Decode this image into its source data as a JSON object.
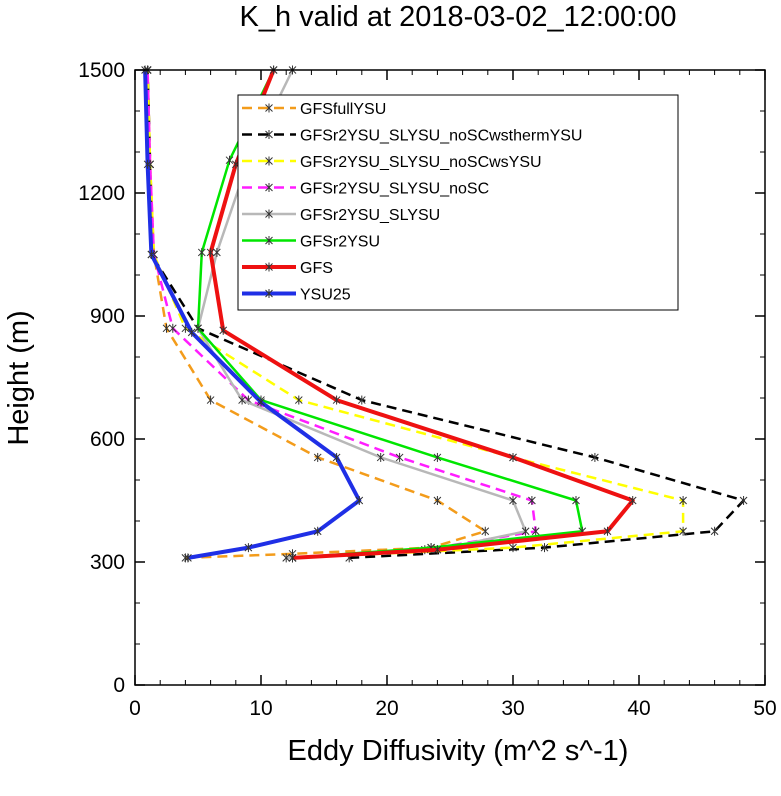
{
  "chart_data": {
    "type": "line",
    "title": "K_h valid at 2018-03-02_12:00:00",
    "xlabel": "Eddy Diffusivity (m^2 s^-1)",
    "ylabel": "Height (m)",
    "xlim": [
      0,
      50
    ],
    "ylim": [
      0,
      1500
    ],
    "xticks": [
      "0",
      "10",
      "20",
      "30",
      "40",
      "50"
    ],
    "yticks": [
      "0",
      "300",
      "600",
      "900",
      "1200",
      "1500"
    ],
    "legend_position": "top-right",
    "series": [
      {
        "name": "GFSfullYSU",
        "color": "#f39c1b",
        "dash": "dashed",
        "x": [
          4.0,
          12.5,
          23.5,
          27.8,
          24.0,
          14.5,
          6.0,
          2.5,
          1.5,
          1.2,
          1.0
        ],
        "y": [
          310,
          320,
          335,
          375,
          450,
          555,
          695,
          870,
          1050,
          1270,
          1500
        ]
      },
      {
        "name": "GFSr2YSU_SLYSU_noSCwsthermYSU",
        "color": "#000000",
        "dash": "dashed",
        "x": [
          17.0,
          32.5,
          46.0,
          48.3,
          36.5,
          18.0,
          5.0,
          1.3,
          1.2,
          1.0
        ],
        "y": [
          310,
          335,
          375,
          450,
          555,
          695,
          870,
          1050,
          1270,
          1500
        ]
      },
      {
        "name": "GFSr2YSU_SLYSU_noSCwsYSU",
        "color": "#ffff00",
        "dash": "dashed",
        "x": [
          12.5,
          30.0,
          43.5,
          43.5,
          30.0,
          13.0,
          4.0,
          1.5,
          1.2,
          1.0
        ],
        "y": [
          310,
          335,
          375,
          450,
          555,
          695,
          870,
          1050,
          1270,
          1500
        ]
      },
      {
        "name": "GFSr2YSU_SLYSU_noSC",
        "color": "#ff1dff",
        "dash": "dashed",
        "x": [
          12.5,
          23.0,
          31.8,
          31.5,
          21.0,
          9.0,
          3.0,
          1.5,
          1.2,
          1.0
        ],
        "y": [
          310,
          330,
          375,
          450,
          555,
          695,
          870,
          1050,
          1270,
          1500
        ]
      },
      {
        "name": "GFSr2YSU_SLYSU",
        "color": "#b8b8b8",
        "dash": "solid",
        "x": [
          12.0,
          24.0,
          31.0,
          30.0,
          19.5,
          8.5,
          5.0,
          6.5,
          9.0,
          12.5
        ],
        "y": [
          310,
          330,
          375,
          450,
          555,
          695,
          870,
          1055,
          1280,
          1500
        ]
      },
      {
        "name": "GFSr2YSU",
        "color": "#00e600",
        "dash": "solid",
        "x": [
          12.5,
          23.5,
          35.5,
          35.0,
          24.0,
          10.0,
          5.0,
          5.3,
          7.5,
          11.0
        ],
        "y": [
          310,
          335,
          375,
          450,
          555,
          695,
          870,
          1055,
          1280,
          1500
        ]
      },
      {
        "name": "GFS",
        "color": "#ee1111",
        "dash": "solid",
        "x": [
          12.5,
          24.0,
          37.5,
          39.5,
          30.0,
          16.0,
          7.0,
          6.0,
          8.0,
          11.0
        ],
        "y": [
          310,
          330,
          375,
          450,
          555,
          695,
          865,
          1055,
          1270,
          1500
        ]
      },
      {
        "name": "YSU25",
        "color": "#1f2fe6",
        "dash": "solid",
        "x": [
          4.2,
          9.0,
          14.5,
          17.8,
          16.0,
          10.0,
          4.5,
          1.3,
          1.0,
          0.8
        ],
        "y": [
          310,
          335,
          375,
          450,
          555,
          690,
          860,
          1050,
          1270,
          1500
        ]
      }
    ]
  }
}
